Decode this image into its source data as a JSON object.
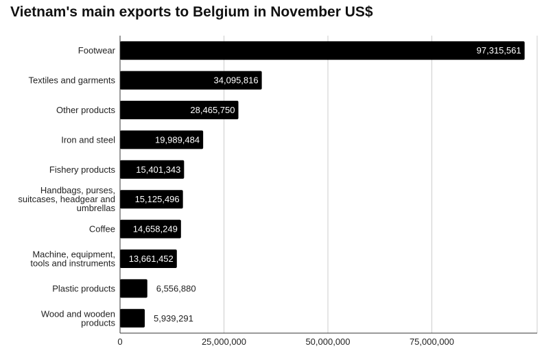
{
  "chart_data": {
    "type": "bar",
    "orientation": "horizontal",
    "title": "Vietnam's main exports to Belgium in November US$",
    "categories": [
      "Footwear",
      "Textiles and garments",
      "Other products",
      "Iron and steel",
      "Fishery products",
      "Handbags, purses, suitcases, headgear and umbrellas",
      "Coffee",
      "Machine, equipment, tools and instruments",
      "Plastic products",
      "Wood and wooden products"
    ],
    "category_lines": [
      [
        "Footwear"
      ],
      [
        "Textiles and garments"
      ],
      [
        "Other products"
      ],
      [
        "Iron and steel"
      ],
      [
        "Fishery products"
      ],
      [
        "Handbags, purses,",
        "suitcases, headgear and",
        "umbrellas"
      ],
      [
        "Coffee"
      ],
      [
        "Machine, equipment,",
        "tools and instruments"
      ],
      [
        "Plastic products"
      ],
      [
        "Wood and wooden",
        "products"
      ]
    ],
    "values": [
      97315561,
      34095816,
      28465750,
      19989484,
      15401343,
      15125496,
      14658249,
      13661452,
      6556880,
      5939291
    ],
    "value_labels": [
      "97,315,561",
      "34,095,816",
      "28,465,750",
      "19,989,484",
      "15,401,343",
      "15,125,496",
      "14,658,249",
      "13,661,452",
      "6,556,880",
      "5,939,291"
    ],
    "xlim": [
      0,
      100000000
    ],
    "xticks": [
      0,
      25000000,
      50000000,
      75000000
    ],
    "xtick_labels": [
      "0",
      "25,000,000",
      "50,000,000",
      "75,000,000"
    ],
    "grid": true,
    "bar_color": "#000000",
    "grid_color": "#cccccc"
  }
}
